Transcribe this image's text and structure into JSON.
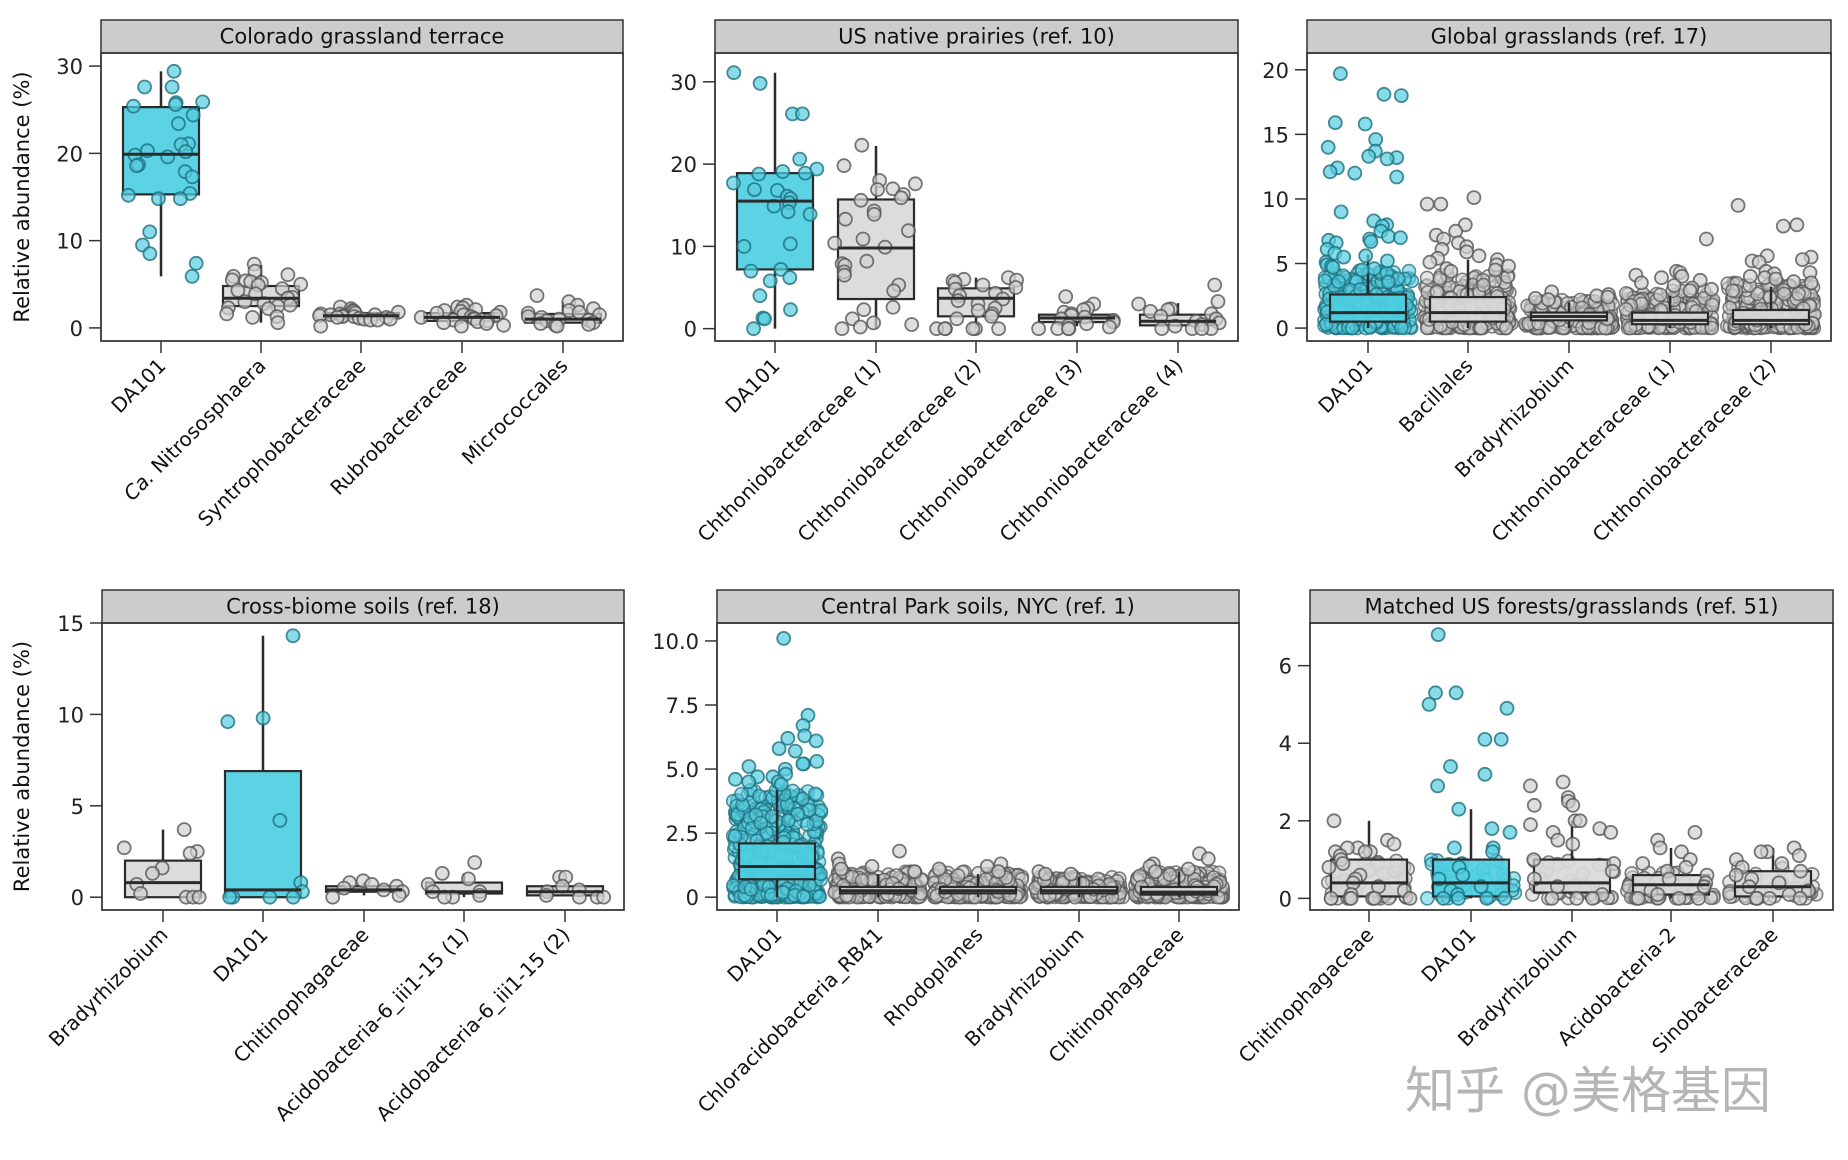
{
  "chart_data": [
    {
      "type": "box",
      "title": "Colorado grassland terrace",
      "ylabel": "Relative abundance (%)",
      "ylim": [
        -1.5,
        31.5
      ],
      "yticks": [
        0,
        10,
        20,
        30
      ],
      "ytick_labels": [
        "0",
        "10",
        "20",
        "30"
      ],
      "categories": [
        "DA101",
        "Ca. Nitrososphaera",
        "Syntrophobacteraceae",
        "Rubrobacteraceae",
        "Micrococcales"
      ],
      "highlight": [
        true,
        false,
        false,
        false,
        false
      ],
      "boxes": [
        {
          "whisker_low": 5.9,
          "q1": 15.3,
          "median": 19.9,
          "q3": 25.3,
          "whisker_high": 29.4
        },
        {
          "whisker_low": 0.6,
          "q1": 2.5,
          "median": 3.4,
          "q3": 4.8,
          "whisker_high": 7.2
        },
        {
          "whisker_low": 0.9,
          "q1": 1.1,
          "median": 1.4,
          "q3": 1.7,
          "whisker_high": 2.0
        },
        {
          "whisker_low": 0.5,
          "q1": 0.8,
          "median": 1.2,
          "q3": 1.7,
          "whisker_high": 2.4
        },
        {
          "whisker_low": 0.3,
          "q1": 0.6,
          "median": 1.0,
          "q3": 1.6,
          "whisker_high": 3.0
        }
      ],
      "points": [
        [
          29.4,
          27.6,
          27.6,
          25.9,
          25.8,
          25.6,
          25.4,
          24.4,
          23.4,
          21.1,
          21.0,
          20.3,
          20.2,
          19.8,
          19.6,
          18.7,
          18.6,
          17.9,
          17.3,
          15.4,
          15.2,
          14.8,
          14.8,
          11.0,
          9.5,
          8.5,
          7.4,
          5.9
        ],
        [
          7.3,
          6.5,
          6.1,
          5.9,
          5.5,
          5.4,
          5.3,
          5.2,
          5.0,
          4.9,
          4.5,
          4.3,
          3.9,
          3.5,
          3.4,
          3.0,
          2.8,
          2.6,
          2.5,
          2.3,
          2.2,
          1.6,
          1.3,
          1.2,
          0.6
        ],
        [
          2.4,
          2.2,
          2.0,
          1.9,
          1.8,
          1.7,
          1.6,
          1.6,
          1.5,
          1.5,
          1.4,
          1.4,
          1.3,
          1.3,
          1.2,
          1.2,
          1.1,
          1.0,
          1.0,
          0.9,
          0.9,
          0.2
        ],
        [
          2.6,
          2.4,
          2.3,
          2.1,
          2.0,
          1.9,
          1.8,
          1.7,
          1.5,
          1.4,
          1.3,
          1.2,
          1.1,
          1.0,
          0.9,
          0.8,
          0.7,
          0.6,
          0.5,
          0.3,
          0.2
        ],
        [
          3.7,
          3.0,
          2.6,
          2.2,
          2.0,
          1.8,
          1.7,
          1.5,
          1.3,
          1.2,
          1.0,
          0.9,
          0.8,
          0.6,
          0.5,
          0.4,
          0.3,
          0.2
        ]
      ]
    },
    {
      "type": "box",
      "title": "US native prairies (ref. 10)",
      "ylabel": "",
      "ylim": [
        -1.5,
        33.5
      ],
      "yticks": [
        0,
        10,
        20,
        30
      ],
      "ytick_labels": [
        "0",
        "10",
        "20",
        "30"
      ],
      "categories": [
        "DA101",
        "Chthoniobacteraceae (1)",
        "Chthoniobacteraceae (2)",
        "Chthoniobacteraceae (3)",
        "Chthoniobacteraceae (4)"
      ],
      "highlight": [
        true,
        false,
        false,
        false,
        false
      ],
      "boxes": [
        {
          "whisker_low": 0.0,
          "q1": 7.2,
          "median": 15.5,
          "q3": 18.9,
          "whisker_high": 31.1
        },
        {
          "whisker_low": 0.0,
          "q1": 3.6,
          "median": 9.8,
          "q3": 15.7,
          "whisker_high": 22.2
        },
        {
          "whisker_low": 0.0,
          "q1": 1.5,
          "median": 3.7,
          "q3": 4.9,
          "whisker_high": 6.2
        },
        {
          "whisker_low": 0.3,
          "q1": 0.8,
          "median": 1.3,
          "q3": 1.7,
          "whisker_high": 2.3
        },
        {
          "whisker_low": 0.2,
          "q1": 0.4,
          "median": 0.9,
          "q3": 1.7,
          "whisker_high": 3.1
        }
      ],
      "points": [
        [
          31.1,
          29.8,
          26.1,
          26.1,
          20.6,
          19.4,
          19.1,
          18.9,
          18.8,
          17.7,
          16.9,
          16.8,
          16.1,
          15.8,
          15.3,
          14.9,
          14.2,
          13.9,
          10.3,
          10.0,
          7.2,
          7.0,
          6.2,
          5.8,
          4.0,
          2.3,
          1.3,
          1.2,
          0.0
        ],
        [
          22.3,
          19.8,
          18.0,
          17.6,
          17.0,
          16.9,
          16.3,
          15.9,
          15.6,
          14.3,
          13.9,
          13.3,
          11.9,
          10.9,
          10.4,
          9.9,
          8.2,
          7.9,
          7.7,
          6.9,
          6.5,
          5.3,
          4.6,
          2.6,
          2.3,
          1.2,
          0.7,
          0.5,
          0.2,
          0.0
        ],
        [
          6.2,
          6.0,
          5.9,
          5.8,
          5.6,
          5.3,
          5.0,
          4.8,
          4.3,
          4.0,
          3.6,
          3.4,
          3.0,
          2.5,
          2.2,
          1.8,
          1.5,
          1.2,
          0.0,
          0.0,
          0.0,
          0.0,
          0.0,
          0.0
        ],
        [
          3.9,
          3.0,
          2.5,
          2.3,
          2.0,
          1.8,
          1.6,
          1.4,
          1.2,
          1.0,
          0.8,
          0.6,
          0.4,
          0.2,
          0.0,
          0.0,
          0.0,
          0.0
        ],
        [
          5.3,
          3.3,
          3.0,
          2.4,
          2.3,
          2.1,
          1.8,
          1.5,
          1.2,
          0.9,
          0.7,
          0.5,
          0.3,
          0.0,
          0.0,
          0.0,
          0.0
        ]
      ]
    },
    {
      "type": "box",
      "title": "Global grasslands (ref. 17)",
      "ylabel": "",
      "ylim": [
        -1.0,
        21.3
      ],
      "yticks": [
        0,
        5,
        10,
        15,
        20
      ],
      "ytick_labels": [
        "0",
        "5",
        "10",
        "15",
        "20"
      ],
      "categories": [
        "DA101",
        "Bacillales",
        "Bradyrhizobium",
        "Chthoniobacteraceae (1)",
        "Chthoniobacteraceae (2)"
      ],
      "highlight": [
        true,
        false,
        false,
        false,
        false
      ],
      "boxes": [
        {
          "whisker_low": 0.0,
          "q1": 0.5,
          "median": 1.2,
          "q3": 2.6,
          "whisker_high": 5.7
        },
        {
          "whisker_low": 0.0,
          "q1": 0.5,
          "median": 1.2,
          "q3": 2.4,
          "whisker_high": 5.3
        },
        {
          "whisker_low": 0.0,
          "q1": 0.6,
          "median": 0.9,
          "q3": 1.2,
          "whisker_high": 2.0
        },
        {
          "whisker_low": 0.0,
          "q1": 0.3,
          "median": 0.6,
          "q3": 1.2,
          "whisker_high": 2.5
        },
        {
          "whisker_low": 0.0,
          "q1": 0.3,
          "median": 0.6,
          "q3": 1.4,
          "whisker_high": 3.2
        }
      ],
      "points": [
        [
          19.7,
          18.1,
          18.0,
          15.9,
          15.8,
          14.6,
          14.0,
          13.7,
          13.3,
          13.2,
          13.1,
          12.4,
          12.1,
          12.0,
          11.7,
          9.0,
          8.3,
          8.0,
          7.9,
          7.5,
          7.1,
          7.0,
          6.9,
          6.8,
          6.7,
          6.6,
          6.1,
          5.8,
          5.6,
          5.5,
          5.2,
          5.1,
          4.9,
          4.8,
          4.7,
          4.6,
          4.5
        ],
        [
          10.1,
          9.6,
          9.6,
          8.0,
          7.5,
          7.2,
          6.9,
          6.6,
          6.3,
          6.1,
          5.9,
          5.6,
          5.4,
          5.3,
          5.1,
          4.9,
          4.8,
          4.6,
          4.5,
          4.4
        ],
        [
          2.8,
          2.6,
          2.5,
          2.4,
          2.3,
          2.2
        ],
        [
          6.9,
          4.4,
          4.3,
          4.1,
          4.0,
          3.9,
          3.7,
          3.5,
          3.3,
          3.1,
          3.0,
          2.9
        ],
        [
          9.5,
          8.0,
          7.9,
          5.6,
          5.5,
          5.3,
          5.2,
          5.1,
          4.4,
          4.3,
          4.2,
          4.0,
          3.9,
          3.8,
          3.6,
          3.5
        ]
      ],
      "dense_points": [
        {
          "count": 260,
          "max": 4.5
        },
        {
          "count": 240,
          "max": 4.3
        },
        {
          "count": 200,
          "max": 2.2
        },
        {
          "count": 200,
          "max": 2.9
        },
        {
          "count": 220,
          "max": 3.5
        }
      ]
    },
    {
      "type": "box",
      "title": "Cross-biome soils (ref. 18)",
      "ylabel": "Relative abundance (%)",
      "ylim": [
        -0.7,
        15.0
      ],
      "yticks": [
        0,
        5,
        10,
        15
      ],
      "ytick_labels": [
        "0",
        "5",
        "10",
        "15"
      ],
      "categories": [
        "Bradyrhizobium",
        "DA101",
        "Chitinophagaceae",
        "Acidobacteria-6_iii1-15 (1)",
        "Acidobacteria-6_iii1-15 (2)"
      ],
      "highlight": [
        false,
        true,
        false,
        false,
        false
      ],
      "boxes": [
        {
          "whisker_low": 0.0,
          "q1": 0.0,
          "median": 0.8,
          "q3": 2.0,
          "whisker_high": 3.7
        },
        {
          "whisker_low": 0.0,
          "q1": 0.0,
          "median": 0.4,
          "q3": 6.9,
          "whisker_high": 14.3
        },
        {
          "whisker_low": 0.1,
          "q1": 0.3,
          "median": 0.4,
          "q3": 0.6,
          "whisker_high": 0.8
        },
        {
          "whisker_low": 0.0,
          "q1": 0.2,
          "median": 0.3,
          "q3": 0.8,
          "whisker_high": 1.3
        },
        {
          "whisker_low": 0.1,
          "q1": 0.1,
          "median": 0.3,
          "q3": 0.6,
          "whisker_high": 1.0
        }
      ],
      "points": [
        [
          3.7,
          2.7,
          2.5,
          2.4,
          1.6,
          1.3,
          0.7,
          0.2,
          0.0,
          0.0,
          0.0
        ],
        [
          14.3,
          9.8,
          9.6,
          4.2,
          0.8,
          0.3,
          0.0,
          0.0,
          0.0,
          0.0
        ],
        [
          0.9,
          0.8,
          0.7,
          0.6,
          0.5,
          0.4,
          0.3,
          0.1,
          0.0
        ],
        [
          1.9,
          1.3,
          1.0,
          0.7,
          0.3,
          0.3,
          0.1,
          0.0,
          0.0
        ],
        [
          1.1,
          1.1,
          0.6,
          0.4,
          0.3,
          0.1,
          0.0,
          0.0,
          0.0
        ]
      ]
    },
    {
      "type": "box",
      "title": "Central Park soils, NYC (ref. 1)",
      "ylabel": "",
      "ylim": [
        -0.5,
        10.7
      ],
      "yticks": [
        0,
        2.5,
        5.0,
        7.5,
        10.0
      ],
      "ytick_labels": [
        "0",
        "2.5",
        "5.0",
        "7.5",
        "10.0"
      ],
      "categories": [
        "DA101",
        "Chloracidobacteria_RB41",
        "Rhodoplanes",
        "Bradyrhizobium",
        "Chitinophagaceae"
      ],
      "highlight": [
        true,
        false,
        false,
        false,
        false
      ],
      "boxes": [
        {
          "whisker_low": 0.0,
          "q1": 0.7,
          "median": 1.2,
          "q3": 2.1,
          "whisker_high": 4.3
        },
        {
          "whisker_low": 0.0,
          "q1": 0.15,
          "median": 0.25,
          "q3": 0.4,
          "whisker_high": 0.9
        },
        {
          "whisker_low": 0.0,
          "q1": 0.15,
          "median": 0.25,
          "q3": 0.4,
          "whisker_high": 0.9
        },
        {
          "whisker_low": 0.0,
          "q1": 0.15,
          "median": 0.25,
          "q3": 0.4,
          "whisker_high": 0.8
        },
        {
          "whisker_low": 0.0,
          "q1": 0.1,
          "median": 0.2,
          "q3": 0.4,
          "whisker_high": 1.0
        }
      ],
      "points": [
        [
          10.1,
          7.1,
          6.7,
          6.3,
          6.2,
          6.1,
          5.8,
          5.7,
          5.3,
          5.2,
          5.2,
          5.1,
          5.0,
          4.8,
          4.7,
          4.7,
          4.6,
          4.5,
          4.5,
          4.4
        ],
        [
          1.8,
          1.5,
          1.3,
          1.2,
          1.1,
          1.0
        ],
        [
          1.3,
          1.2,
          1.1,
          1.0
        ],
        [
          1.0,
          0.9,
          0.9
        ],
        [
          1.7,
          1.5,
          1.3,
          1.2,
          1.1,
          1.0
        ]
      ],
      "dense_points": [
        {
          "count": 420,
          "max": 4.2
        },
        {
          "count": 220,
          "max": 1.0
        },
        {
          "count": 220,
          "max": 1.0
        },
        {
          "count": 200,
          "max": 0.8
        },
        {
          "count": 220,
          "max": 1.0
        }
      ]
    },
    {
      "type": "box",
      "title": "Matched US forests/grasslands (ref. 51)",
      "ylabel": "",
      "ylim": [
        -0.3,
        7.1
      ],
      "yticks": [
        0,
        2,
        4,
        6
      ],
      "ytick_labels": [
        "0",
        "2",
        "4",
        "6"
      ],
      "categories": [
        "Chitinophagaceae",
        "DA101",
        "Bradyrhizobium",
        "Acidobacteria-2",
        "Sinobacteraceae"
      ],
      "highlight": [
        false,
        true,
        false,
        false,
        false
      ],
      "boxes": [
        {
          "whisker_low": 0.0,
          "q1": 0.05,
          "median": 0.4,
          "q3": 1.0,
          "whisker_high": 2.0
        },
        {
          "whisker_low": 0.0,
          "q1": 0.05,
          "median": 0.4,
          "q3": 1.0,
          "whisker_high": 2.3
        },
        {
          "whisker_low": 0.0,
          "q1": 0.15,
          "median": 0.4,
          "q3": 1.0,
          "whisker_high": 2.0
        },
        {
          "whisker_low": 0.0,
          "q1": 0.1,
          "median": 0.35,
          "q3": 0.6,
          "whisker_high": 1.3
        },
        {
          "whisker_low": 0.0,
          "q1": 0.05,
          "median": 0.3,
          "q3": 0.7,
          "whisker_high": 1.3
        }
      ],
      "points": [
        [
          2.0,
          1.5,
          1.4,
          1.3,
          1.3,
          1.2,
          1.2,
          1.2,
          1.1,
          1.0,
          0.9,
          0.8,
          0.6,
          0.5,
          0.4,
          0.3,
          0.2,
          0.1,
          0.0,
          0.0,
          0.0,
          0.0,
          0.0,
          0.0
        ],
        [
          6.8,
          5.3,
          5.3,
          5.0,
          4.9,
          4.1,
          4.1,
          3.4,
          3.2,
          2.9,
          2.3,
          1.8,
          1.7,
          1.3,
          1.3,
          1.2,
          0.8,
          0.6,
          0.5,
          0.3,
          0.2,
          0.1,
          0.0,
          0.0,
          0.0,
          0.0
        ],
        [
          3.0,
          2.9,
          2.6,
          2.5,
          2.4,
          2.4,
          2.0,
          2.0,
          1.9,
          1.8,
          1.7,
          1.7,
          1.5,
          1.4,
          1.0,
          0.9,
          0.7,
          0.5,
          0.3,
          0.1,
          0.0,
          0.0,
          0.0
        ],
        [
          1.7,
          1.5,
          1.3,
          1.2,
          1.0,
          0.9,
          0.8,
          0.7,
          0.6,
          0.5,
          0.4,
          0.3,
          0.2,
          0.1,
          0.0,
          0.0,
          0.0,
          0.0
        ],
        [
          1.3,
          1.2,
          1.2,
          1.1,
          1.0,
          0.9,
          0.8,
          0.7,
          0.6,
          0.5,
          0.4,
          0.3,
          0.2,
          0.1,
          0.0,
          0.0,
          0.0,
          0.0
        ]
      ],
      "dense_points": [
        {
          "count": 40,
          "max": 1.0
        },
        {
          "count": 40,
          "max": 1.0
        },
        {
          "count": 30,
          "max": 1.0
        },
        {
          "count": 40,
          "max": 0.7
        },
        {
          "count": 40,
          "max": 0.8
        }
      ]
    }
  ],
  "colors": {
    "highlight_fill": "#4dcfe2",
    "highlight_point": "#56cde0",
    "highlight_point_stroke": "#1d6f7d",
    "other_fill": "#d9d9d9",
    "other_point": "#d0d0d0",
    "other_point_stroke": "#555555",
    "strip_fill": "#cccccc",
    "box_stroke": "#2b2b2b"
  },
  "watermark": "知乎 @美格基因"
}
